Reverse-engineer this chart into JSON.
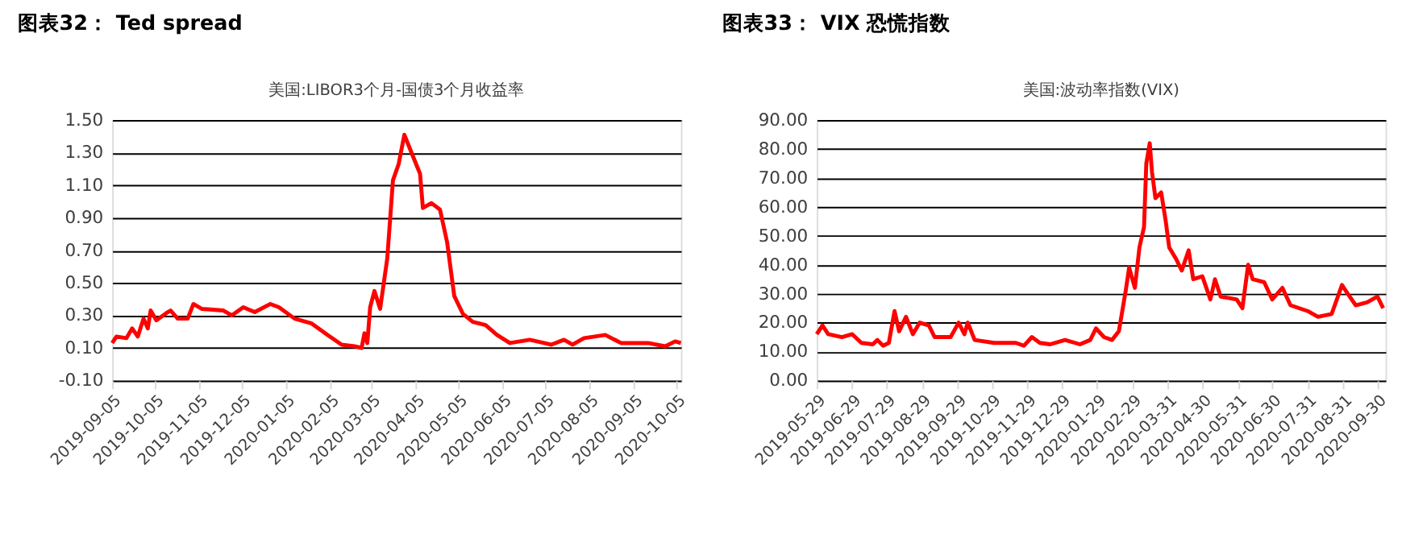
{
  "chart_data": [
    {
      "type": "line",
      "title": "图表32： Ted spread",
      "subtitle": "美国:LIBOR3个月-国债3个月收益率",
      "grid": "y",
      "marker": "none",
      "line_style": "solid",
      "x": [
        "2019-09-05",
        "2019-09-08",
        "2019-09-15",
        "2019-09-19",
        "2019-09-23",
        "2019-09-27",
        "2019-09-30",
        "2019-10-02",
        "2019-10-06",
        "2019-10-14",
        "2019-10-16",
        "2019-10-21",
        "2019-10-28",
        "2019-11-01",
        "2019-11-07",
        "2019-11-22",
        "2019-11-28",
        "2019-12-06",
        "2019-12-14",
        "2019-12-25",
        "2019-12-31",
        "2020-01-11",
        "2020-01-23",
        "2020-02-03",
        "2020-02-13",
        "2020-02-22",
        "2020-02-27",
        "2020-02-29",
        "2020-03-02",
        "2020-03-04",
        "2020-03-07",
        "2020-03-11",
        "2020-03-16",
        "2020-03-20",
        "2020-03-24",
        "2020-03-28",
        "2020-04-02",
        "2020-04-08",
        "2020-04-10",
        "2020-04-16",
        "2020-04-22",
        "2020-04-27",
        "2020-05-02",
        "2020-05-08",
        "2020-05-15",
        "2020-05-24",
        "2020-06-01",
        "2020-06-10",
        "2020-06-24",
        "2020-07-09",
        "2020-07-18",
        "2020-07-24",
        "2020-08-01",
        "2020-08-16",
        "2020-08-27",
        "2020-09-15",
        "2020-09-27",
        "2020-10-04",
        "2020-10-08"
      ],
      "series": [
        {
          "color": "#ff0000",
          "values": [
            0.13,
            0.17,
            0.16,
            0.22,
            0.17,
            0.28,
            0.22,
            0.33,
            0.27,
            0.32,
            0.33,
            0.28,
            0.28,
            0.37,
            0.34,
            0.33,
            0.3,
            0.35,
            0.32,
            0.37,
            0.35,
            0.28,
            0.25,
            0.18,
            0.12,
            0.11,
            0.1,
            0.19,
            0.13,
            0.35,
            0.45,
            0.34,
            0.65,
            1.13,
            1.23,
            1.41,
            1.3,
            1.17,
            0.96,
            0.99,
            0.95,
            0.75,
            0.42,
            0.31,
            0.26,
            0.24,
            0.18,
            0.13,
            0.15,
            0.12,
            0.15,
            0.12,
            0.16,
            0.18,
            0.13,
            0.13,
            0.11,
            0.14,
            0.13
          ]
        }
      ],
      "xlim": [
        "2019-09-05",
        "2020-10-08"
      ],
      "xticks": [
        "2019-09-05",
        "2019-10-05",
        "2019-11-05",
        "2019-12-05",
        "2020-01-05",
        "2020-02-05",
        "2020-03-05",
        "2020-04-05",
        "2020-05-05",
        "2020-06-05",
        "2020-07-05",
        "2020-08-05",
        "2020-09-05",
        "2020-10-05"
      ],
      "ylim": [
        -0.1,
        1.5
      ],
      "yticks": [
        {
          "value": -0.1,
          "label": "-0.10"
        },
        {
          "value": 0.1,
          "label": "0.10"
        },
        {
          "value": 0.3,
          "label": "0.30"
        },
        {
          "value": 0.5,
          "label": "0.50"
        },
        {
          "value": 0.7,
          "label": "0.70"
        },
        {
          "value": 0.9,
          "label": "0.90"
        },
        {
          "value": 1.1,
          "label": "1.10"
        },
        {
          "value": 1.3,
          "label": "1.30"
        },
        {
          "value": 1.5,
          "label": "1.50"
        }
      ]
    },
    {
      "type": "line",
      "title": "图表33： VIX 恐慌指数",
      "subtitle": "美国:波动率指数(VIX)",
      "grid": "y",
      "marker": "none",
      "line_style": "solid",
      "x": [
        "2019-05-29",
        "2019-06-03",
        "2019-06-08",
        "2019-06-20",
        "2019-06-29",
        "2019-07-07",
        "2019-07-17",
        "2019-07-21",
        "2019-07-26",
        "2019-07-31",
        "2019-08-05",
        "2019-08-09",
        "2019-08-15",
        "2019-08-21",
        "2019-08-27",
        "2019-09-04",
        "2019-09-09",
        "2019-09-23",
        "2019-09-30",
        "2019-10-05",
        "2019-10-08",
        "2019-10-14",
        "2019-10-31",
        "2019-11-19",
        "2019-11-26",
        "2019-12-03",
        "2019-12-10",
        "2019-12-19",
        "2020-01-01",
        "2020-01-14",
        "2020-01-23",
        "2020-01-28",
        "2020-02-04",
        "2020-02-11",
        "2020-02-17",
        "2020-02-23",
        "2020-02-26",
        "2020-03-02",
        "2020-03-06",
        "2020-03-10",
        "2020-03-12",
        "2020-03-15",
        "2020-03-17",
        "2020-03-20",
        "2020-03-25",
        "2020-03-29",
        "2020-04-01",
        "2020-04-07",
        "2020-04-12",
        "2020-04-18",
        "2020-04-22",
        "2020-04-30",
        "2020-05-07",
        "2020-05-11",
        "2020-05-16",
        "2020-05-30",
        "2020-06-04",
        "2020-06-09",
        "2020-06-13",
        "2020-06-23",
        "2020-06-30",
        "2020-07-09",
        "2020-07-16",
        "2020-07-31",
        "2020-08-09",
        "2020-08-21",
        "2020-08-30",
        "2020-09-04",
        "2020-09-11",
        "2020-09-21",
        "2020-09-30",
        "2020-10-05"
      ],
      "series": [
        {
          "color": "#ff0000",
          "values": [
            16,
            19,
            16,
            15,
            16,
            13,
            12.5,
            14,
            12,
            13,
            24,
            17,
            22,
            16,
            20,
            19,
            15,
            15,
            20,
            16,
            20,
            14,
            13,
            13,
            12,
            15,
            13,
            12.5,
            14,
            12.5,
            14,
            18,
            15,
            14,
            17,
            31,
            39,
            32,
            46,
            53,
            75,
            82,
            72,
            63,
            65,
            55,
            46,
            42,
            38,
            45,
            35,
            36,
            28,
            35,
            29,
            28,
            25,
            40,
            35,
            34,
            28,
            32,
            26,
            24,
            22,
            23,
            33,
            30,
            26,
            27,
            29,
            25
          ]
        }
      ],
      "xlim": [
        "2019-05-29",
        "2020-10-07"
      ],
      "xticks": [
        "2019-05-29",
        "2019-06-29",
        "2019-07-29",
        "2019-08-29",
        "2019-09-29",
        "2019-10-29",
        "2019-11-29",
        "2019-12-29",
        "2020-01-29",
        "2020-02-29",
        "2020-03-31",
        "2020-04-30",
        "2020-05-31",
        "2020-06-30",
        "2020-07-31",
        "2020-08-31",
        "2020-09-30"
      ],
      "ylim": [
        0,
        90
      ],
      "yticks": [
        {
          "value": 0,
          "label": "0.00"
        },
        {
          "value": 10,
          "label": "10.00"
        },
        {
          "value": 20,
          "label": "20.00"
        },
        {
          "value": 30,
          "label": "30.00"
        },
        {
          "value": 40,
          "label": "40.00"
        },
        {
          "value": 50,
          "label": "50.00"
        },
        {
          "value": 60,
          "label": "60.00"
        },
        {
          "value": 70,
          "label": "70.00"
        },
        {
          "value": 80,
          "label": "80.00"
        },
        {
          "value": 90,
          "label": "90.00"
        }
      ]
    }
  ]
}
